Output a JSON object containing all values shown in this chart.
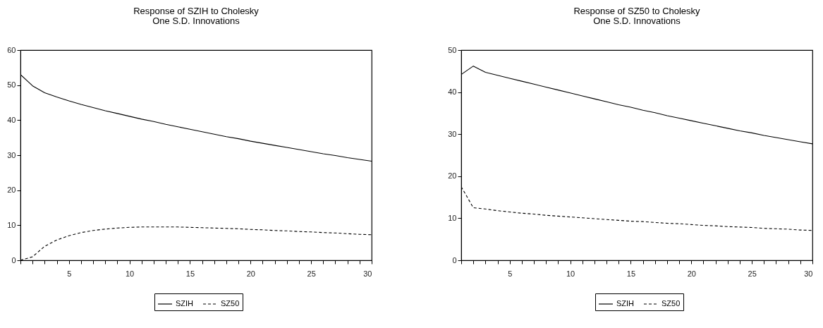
{
  "chart_data": [
    {
      "type": "line",
      "title": "Response of SZIH to Cholesky",
      "subtitle": "One S.D. Innovations",
      "x": [
        1,
        2,
        3,
        4,
        5,
        6,
        7,
        8,
        9,
        10,
        11,
        12,
        13,
        14,
        15,
        16,
        17,
        18,
        19,
        20,
        21,
        22,
        23,
        24,
        25,
        26,
        27,
        28,
        29,
        30
      ],
      "xlim": [
        1,
        30
      ],
      "ylim": [
        0,
        60
      ],
      "yticks": [
        0,
        10,
        20,
        30,
        40,
        50,
        60
      ],
      "xticks": [
        {
          "value": 1,
          "label": null
        },
        {
          "value": 2,
          "label": null
        },
        {
          "value": 3,
          "label": null
        },
        {
          "value": 4,
          "label": null
        },
        5,
        {
          "value": 6,
          "label": null
        },
        {
          "value": 7,
          "label": null
        },
        {
          "value": 8,
          "label": null
        },
        {
          "value": 9,
          "label": null
        },
        10,
        {
          "value": 11,
          "label": null
        },
        {
          "value": 12,
          "label": null
        },
        {
          "value": 13,
          "label": null
        },
        {
          "value": 14,
          "label": null
        },
        15,
        {
          "value": 16,
          "label": null
        },
        {
          "value": 17,
          "label": null
        },
        {
          "value": 18,
          "label": null
        },
        {
          "value": 19,
          "label": null
        },
        20,
        {
          "value": 21,
          "label": null
        },
        {
          "value": 22,
          "label": null
        },
        {
          "value": 23,
          "label": null
        },
        {
          "value": 24,
          "label": null
        },
        25,
        {
          "value": 26,
          "label": null
        },
        {
          "value": 27,
          "label": null
        },
        {
          "value": 28,
          "label": null
        },
        {
          "value": 29,
          "label": null
        },
        30
      ],
      "grid": false,
      "legend": "bottom",
      "series": [
        {
          "name": "SZIH",
          "color": "#000000",
          "line_style": "solid",
          "values": [
            53,
            49.8,
            47.8,
            46.6,
            45.5,
            44.5,
            43.6,
            42.7,
            41.9,
            41.1,
            40.3,
            39.6,
            38.8,
            38.1,
            37.4,
            36.7,
            36.0,
            35.3,
            34.7,
            34.0,
            33.4,
            32.8,
            32.2,
            31.6,
            31.0,
            30.4,
            29.9,
            29.3,
            28.8,
            28.3
          ]
        },
        {
          "name": "SZ50",
          "color": "#000000",
          "line_style": "dashed",
          "values": [
            0,
            1,
            4,
            5.8,
            7,
            7.9,
            8.5,
            8.9,
            9.2,
            9.4,
            9.5,
            9.5,
            9.5,
            9.5,
            9.4,
            9.3,
            9.2,
            9.1,
            9.0,
            8.8,
            8.7,
            8.5,
            8.4,
            8.2,
            8.1,
            7.9,
            7.8,
            7.6,
            7.4,
            7.3
          ]
        }
      ]
    },
    {
      "type": "line",
      "title": "Response of SZ50 to Cholesky",
      "subtitle": "One S.D. Innovations",
      "x": [
        1,
        2,
        3,
        4,
        5,
        6,
        7,
        8,
        9,
        10,
        11,
        12,
        13,
        14,
        15,
        16,
        17,
        18,
        19,
        20,
        21,
        22,
        23,
        24,
        25,
        26,
        27,
        28,
        29,
        30
      ],
      "xlim": [
        1,
        30
      ],
      "ylim": [
        0,
        50
      ],
      "yticks": [
        0,
        10,
        20,
        30,
        40,
        50
      ],
      "xticks": [
        {
          "value": 1,
          "label": null
        },
        {
          "value": 2,
          "label": null
        },
        {
          "value": 3,
          "label": null
        },
        {
          "value": 4,
          "label": null
        },
        5,
        {
          "value": 6,
          "label": null
        },
        {
          "value": 7,
          "label": null
        },
        {
          "value": 8,
          "label": null
        },
        {
          "value": 9,
          "label": null
        },
        10,
        {
          "value": 11,
          "label": null
        },
        {
          "value": 12,
          "label": null
        },
        {
          "value": 13,
          "label": null
        },
        {
          "value": 14,
          "label": null
        },
        15,
        {
          "value": 16,
          "label": null
        },
        {
          "value": 17,
          "label": null
        },
        {
          "value": 18,
          "label": null
        },
        {
          "value": 19,
          "label": null
        },
        20,
        {
          "value": 21,
          "label": null
        },
        {
          "value": 22,
          "label": null
        },
        {
          "value": 23,
          "label": null
        },
        {
          "value": 24,
          "label": null
        },
        25,
        {
          "value": 26,
          "label": null
        },
        {
          "value": 27,
          "label": null
        },
        {
          "value": 28,
          "label": null
        },
        {
          "value": 29,
          "label": null
        },
        30
      ],
      "grid": false,
      "legend": "bottom",
      "series": [
        {
          "name": "SZIH",
          "color": "#000000",
          "line_style": "solid",
          "values": [
            44.2,
            46.2,
            44.7,
            44.0,
            43.3,
            42.6,
            41.9,
            41.2,
            40.5,
            39.8,
            39.1,
            38.4,
            37.7,
            37.0,
            36.4,
            35.7,
            35.1,
            34.4,
            33.8,
            33.2,
            32.6,
            32.0,
            31.4,
            30.8,
            30.3,
            29.7,
            29.2,
            28.7,
            28.2,
            27.7
          ]
        },
        {
          "name": "SZ50",
          "color": "#000000",
          "line_style": "dashed",
          "values": [
            17.5,
            12.5,
            12.2,
            11.8,
            11.5,
            11.2,
            11.0,
            10.7,
            10.5,
            10.3,
            10.1,
            9.9,
            9.7,
            9.5,
            9.3,
            9.2,
            9.0,
            8.8,
            8.7,
            8.5,
            8.3,
            8.2,
            8.0,
            7.9,
            7.8,
            7.6,
            7.5,
            7.4,
            7.2,
            7.1
          ]
        }
      ]
    }
  ]
}
